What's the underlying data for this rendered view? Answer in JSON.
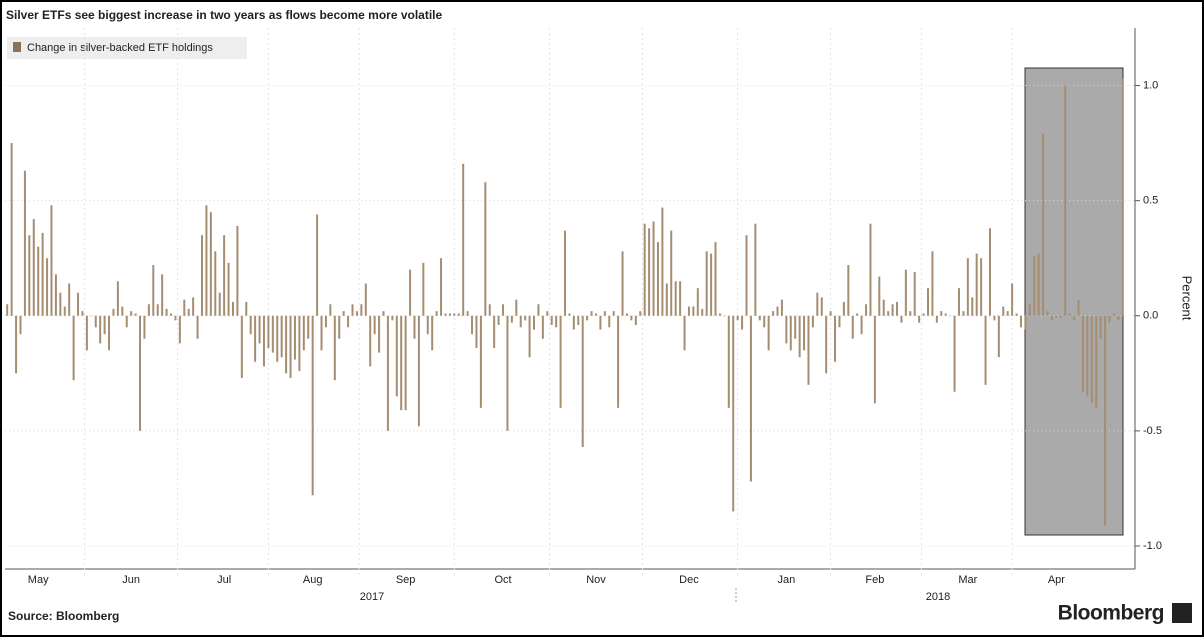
{
  "chart_data": {
    "type": "bar",
    "title": "Silver ETFs see biggest increase in two years as flows become more volatile",
    "legend_label": "Change in silver-backed ETF holdings",
    "y_axis_label": "Percent",
    "source": "Source: Bloomberg",
    "brand": "Bloomberg",
    "year_labels": [
      "2017",
      "2018"
    ],
    "color": "#a58d72",
    "legend_color": "#8c7157",
    "ylim": [
      -1.1,
      1.25
    ],
    "yticks": [
      {
        "value": -1,
        "label": "-1.0"
      },
      -0.5,
      {
        "value": 0,
        "label": "0.0"
      },
      0.5,
      {
        "value": 1,
        "label": "1.0"
      }
    ],
    "categories": [
      null,
      null,
      null,
      null,
      null,
      null,
      null,
      "May",
      null,
      null,
      null,
      null,
      null,
      null,
      null,
      null,
      null,
      null,
      null,
      null,
      null,
      null,
      null,
      null,
      null,
      null,
      null,
      null,
      "Jun",
      null,
      null,
      null,
      null,
      null,
      null,
      null,
      null,
      null,
      null,
      null,
      null,
      null,
      null,
      null,
      null,
      null,
      null,
      null,
      null,
      "Jul",
      null,
      null,
      null,
      null,
      null,
      null,
      null,
      null,
      null,
      null,
      null,
      null,
      null,
      null,
      null,
      null,
      null,
      null,
      null,
      "Aug",
      null,
      null,
      null,
      null,
      null,
      null,
      null,
      null,
      null,
      null,
      null,
      null,
      null,
      null,
      null,
      null,
      null,
      null,
      null,
      null,
      "Sep",
      null,
      null,
      null,
      null,
      null,
      null,
      null,
      null,
      null,
      null,
      null,
      null,
      null,
      null,
      null,
      null,
      null,
      null,
      null,
      null,
      null,
      "Oct",
      null,
      null,
      null,
      null,
      null,
      null,
      null,
      null,
      null,
      null,
      null,
      null,
      null,
      null,
      null,
      null,
      null,
      null,
      null,
      null,
      "Nov",
      null,
      null,
      null,
      null,
      null,
      null,
      null,
      null,
      null,
      null,
      null,
      null,
      null,
      null,
      null,
      null,
      null,
      null,
      null,
      null,
      "Dec",
      null,
      null,
      null,
      null,
      null,
      null,
      null,
      null,
      null,
      null,
      null,
      null,
      null,
      null,
      null,
      null,
      null,
      null,
      null,
      null,
      null,
      "Jan",
      null,
      null,
      null,
      null,
      null,
      null,
      null,
      null,
      null,
      null,
      null,
      null,
      null,
      null,
      null,
      null,
      null,
      null,
      null,
      "Feb",
      null,
      null,
      null,
      null,
      null,
      null,
      null,
      null,
      null,
      null,
      null,
      null,
      null,
      null,
      null,
      null,
      null,
      null,
      null,
      null,
      "Mar",
      null,
      null,
      null,
      null,
      null,
      null,
      null,
      null,
      null,
      null,
      null,
      null,
      null,
      null,
      null,
      null,
      null,
      null,
      null,
      "Apr",
      null,
      null,
      null,
      null,
      null,
      null,
      null,
      null,
      null,
      null,
      null,
      null,
      null,
      null,
      null
    ],
    "values": [
      0.05,
      0.75,
      -0.25,
      -0.08,
      0.63,
      0.35,
      0.42,
      0.3,
      0.36,
      0.25,
      0.48,
      0.18,
      0.1,
      0.04,
      0.14,
      -0.28,
      0.1,
      0.02,
      -0.15,
      0.0,
      -0.05,
      -0.12,
      -0.08,
      -0.15,
      0.03,
      0.15,
      0.04,
      -0.05,
      0.02,
      0.01,
      -0.5,
      -0.1,
      0.05,
      0.22,
      0.05,
      0.18,
      0.03,
      0.01,
      -0.02,
      -0.12,
      0.07,
      0.03,
      0.08,
      -0.1,
      0.35,
      0.48,
      0.45,
      0.28,
      0.1,
      0.35,
      0.23,
      0.06,
      0.39,
      -0.27,
      0.06,
      -0.08,
      -0.2,
      -0.12,
      -0.22,
      -0.14,
      -0.16,
      -0.2,
      -0.18,
      -0.25,
      -0.27,
      -0.19,
      -0.24,
      -0.15,
      -0.1,
      -0.78,
      0.44,
      -0.15,
      -0.05,
      0.05,
      -0.28,
      -0.1,
      0.02,
      -0.05,
      0.05,
      0.02,
      0.05,
      0.14,
      -0.22,
      -0.08,
      -0.16,
      0.02,
      -0.5,
      -0.02,
      -0.35,
      -0.41,
      -0.41,
      0.2,
      -0.1,
      -0.48,
      0.23,
      -0.08,
      -0.15,
      0.02,
      0.25,
      0.01,
      0.01,
      0.01,
      0.01,
      0.66,
      0.02,
      -0.08,
      -0.14,
      -0.4,
      0.58,
      0.05,
      -0.14,
      -0.04,
      0.05,
      -0.5,
      -0.03,
      0.07,
      -0.05,
      -0.02,
      -0.18,
      -0.06,
      0.05,
      -0.1,
      0.02,
      -0.04,
      -0.05,
      -0.4,
      0.37,
      0.01,
      -0.06,
      -0.04,
      -0.57,
      -0.02,
      0.02,
      0.01,
      -0.06,
      0.02,
      -0.05,
      0.02,
      -0.4,
      0.28,
      0.01,
      -0.02,
      -0.04,
      0.02,
      0.4,
      0.38,
      0.41,
      0.32,
      0.47,
      0.14,
      0.37,
      0.15,
      0.15,
      -0.15,
      0.04,
      0.04,
      0.12,
      0.03,
      0.28,
      0.27,
      0.32,
      0.01,
      0.0,
      -0.4,
      -0.85,
      -0.02,
      -0.06,
      0.35,
      -0.72,
      0.4,
      -0.02,
      -0.05,
      -0.15,
      0.02,
      0.04,
      0.07,
      -0.12,
      -0.15,
      -0.1,
      -0.18,
      -0.15,
      -0.3,
      -0.05,
      0.1,
      0.08,
      -0.25,
      0.02,
      -0.2,
      -0.05,
      0.06,
      0.22,
      -0.1,
      0.01,
      -0.08,
      0.05,
      0.4,
      -0.38,
      0.17,
      0.07,
      0.02,
      0.05,
      0.06,
      -0.03,
      0.2,
      0.02,
      0.19,
      -0.03,
      0.01,
      0.12,
      0.28,
      -0.03,
      0.02,
      0.01,
      0.0,
      -0.33,
      0.12,
      0.02,
      0.25,
      0.08,
      0.27,
      0.25,
      -0.3,
      0.38,
      -0.02,
      -0.18,
      0.04,
      0.02,
      0.14,
      0.01,
      -0.05,
      -0.06,
      0.05,
      0.26,
      0.27,
      0.79,
      0.02,
      -0.02,
      -0.01,
      -0.01,
      1.0,
      0.01,
      -0.02,
      0.07,
      -0.33,
      -0.35,
      -0.38,
      -0.4,
      -0.1,
      -0.91,
      -0.03,
      0.01,
      -0.02,
      1.03
    ]
  }
}
